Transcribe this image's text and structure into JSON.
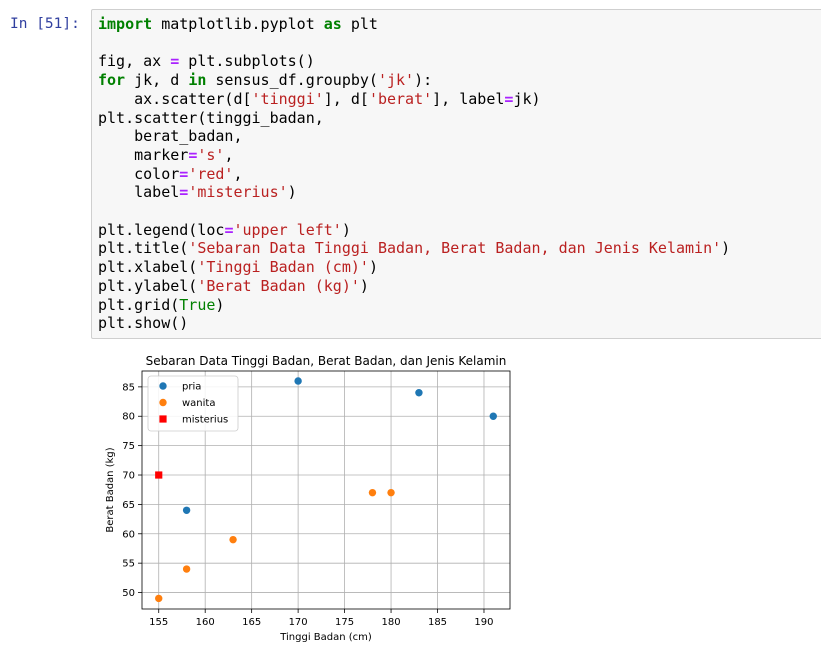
{
  "cell": {
    "prompt": "In [51]:",
    "code_lines": [
      [
        {
          "t": "kw",
          "v": "import"
        },
        {
          "t": "",
          "v": " matplotlib.pyplot "
        },
        {
          "t": "kw",
          "v": "as"
        },
        {
          "t": "",
          "v": " plt"
        }
      ],
      [],
      [
        {
          "t": "",
          "v": "fig, ax "
        },
        {
          "t": "op",
          "v": "="
        },
        {
          "t": "",
          "v": " plt.subplots()"
        }
      ],
      [
        {
          "t": "kw",
          "v": "for"
        },
        {
          "t": "",
          "v": " jk, d "
        },
        {
          "t": "kw",
          "v": "in"
        },
        {
          "t": "",
          "v": " sensus_df.groupby("
        },
        {
          "t": "str",
          "v": "'jk'"
        },
        {
          "t": "",
          "v": "):"
        }
      ],
      [
        {
          "t": "",
          "v": "    ax.scatter(d["
        },
        {
          "t": "str",
          "v": "'tinggi'"
        },
        {
          "t": "",
          "v": "], d["
        },
        {
          "t": "str",
          "v": "'berat'"
        },
        {
          "t": "",
          "v": "], label"
        },
        {
          "t": "op",
          "v": "="
        },
        {
          "t": "",
          "v": "jk)"
        }
      ],
      [
        {
          "t": "",
          "v": "plt.scatter(tinggi_badan,"
        }
      ],
      [
        {
          "t": "",
          "v": "    berat_badan,"
        }
      ],
      [
        {
          "t": "",
          "v": "    marker"
        },
        {
          "t": "op",
          "v": "="
        },
        {
          "t": "str",
          "v": "'s'"
        },
        {
          "t": "",
          "v": ","
        }
      ],
      [
        {
          "t": "",
          "v": "    color"
        },
        {
          "t": "op",
          "v": "="
        },
        {
          "t": "str",
          "v": "'red'"
        },
        {
          "t": "",
          "v": ","
        }
      ],
      [
        {
          "t": "",
          "v": "    label"
        },
        {
          "t": "op",
          "v": "="
        },
        {
          "t": "str",
          "v": "'misterius'"
        },
        {
          "t": "",
          "v": ")"
        }
      ],
      [],
      [
        {
          "t": "",
          "v": "plt.legend(loc"
        },
        {
          "t": "op",
          "v": "="
        },
        {
          "t": "str",
          "v": "'upper left'"
        },
        {
          "t": "",
          "v": ")"
        }
      ],
      [
        {
          "t": "",
          "v": "plt.title("
        },
        {
          "t": "str",
          "v": "'Sebaran Data Tinggi Badan, Berat Badan, dan Jenis Kelamin'"
        },
        {
          "t": "",
          "v": ")"
        }
      ],
      [
        {
          "t": "",
          "v": "plt.xlabel("
        },
        {
          "t": "str",
          "v": "'Tinggi Badan (cm)'"
        },
        {
          "t": "",
          "v": ")"
        }
      ],
      [
        {
          "t": "",
          "v": "plt.ylabel("
        },
        {
          "t": "str",
          "v": "'Berat Badan (kg)'"
        },
        {
          "t": "",
          "v": ")"
        }
      ],
      [
        {
          "t": "",
          "v": "plt.grid("
        },
        {
          "t": "bi",
          "v": "True"
        },
        {
          "t": "",
          "v": ")"
        }
      ],
      [
        {
          "t": "",
          "v": "plt.show()"
        }
      ]
    ]
  },
  "chart_data": {
    "type": "scatter",
    "title": "Sebaran Data Tinggi Badan, Berat Badan, dan Jenis Kelamin",
    "xlabel": "Tinggi Badan (cm)",
    "ylabel": "Berat Badan (kg)",
    "xlim": [
      153.2,
      192.8
    ],
    "ylim": [
      47.2,
      87.7
    ],
    "xticks": [
      155,
      160,
      165,
      170,
      175,
      180,
      185,
      190
    ],
    "yticks": [
      50,
      55,
      60,
      65,
      70,
      75,
      80,
      85
    ],
    "grid": true,
    "legend_position": "upper left",
    "series": [
      {
        "name": "pria",
        "marker": "circle",
        "color": "#1f77b4",
        "points": [
          [
            158,
            64
          ],
          [
            170,
            86
          ],
          [
            183,
            84
          ],
          [
            191,
            80
          ]
        ]
      },
      {
        "name": "wanita",
        "marker": "circle",
        "color": "#ff7f0e",
        "points": [
          [
            155,
            49
          ],
          [
            158,
            54
          ],
          [
            163,
            59
          ],
          [
            178,
            67
          ],
          [
            180,
            67
          ]
        ]
      },
      {
        "name": "misterius",
        "marker": "square",
        "color": "#ff0000",
        "points": [
          [
            155,
            70
          ]
        ]
      }
    ]
  }
}
